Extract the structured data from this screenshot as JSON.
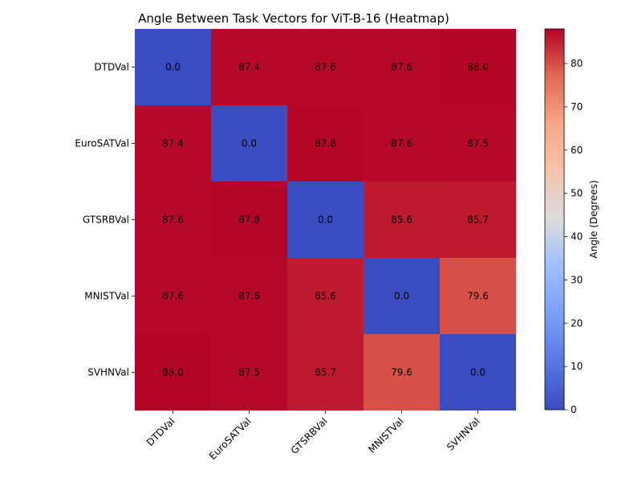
{
  "chart_data": {
    "type": "heatmap",
    "title": "Angle Between Task Vectors for ViT-B-16 (Heatmap)",
    "rows": [
      "DTDVal",
      "EuroSATVal",
      "GTSRBVal",
      "MNISTVal",
      "SVHNVal"
    ],
    "cols": [
      "DTDVal",
      "EuroSATVal",
      "GTSRBVal",
      "MNISTVal",
      "SVHNVal"
    ],
    "values": [
      [
        0.0,
        87.4,
        87.6,
        87.6,
        88.0
      ],
      [
        87.4,
        0.0,
        87.8,
        87.6,
        87.5
      ],
      [
        87.6,
        87.8,
        0.0,
        85.6,
        85.7
      ],
      [
        87.6,
        87.6,
        85.6,
        0.0,
        79.6
      ],
      [
        88.0,
        87.5,
        85.7,
        79.6,
        0.0
      ]
    ],
    "colormap": "coolwarm",
    "colorbar": {
      "label": "Angle (Degrees)",
      "range": [
        0,
        88.0
      ],
      "ticks": [
        0,
        10,
        20,
        30,
        40,
        50,
        60,
        70,
        80
      ]
    },
    "value_format": "0.0"
  }
}
